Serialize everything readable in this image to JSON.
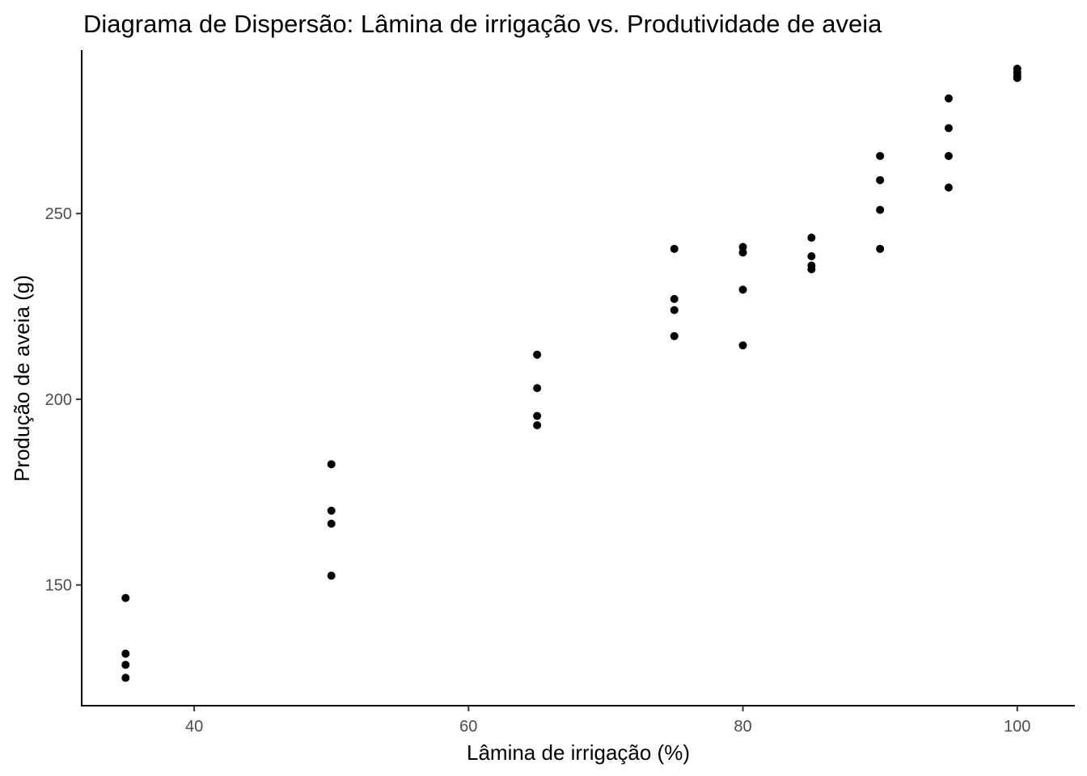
{
  "chart_data": {
    "type": "scatter",
    "title": "Diagrama de Dispersão: Lâmina de irrigação vs. Produtividade de aveia",
    "xlabel": "Lâmina de irrigação (%)",
    "ylabel": "Produção de aveia (g)",
    "xlim": [
      31.8,
      104.2
    ],
    "ylim": [
      117.5,
      294
    ],
    "xticks": [
      40,
      60,
      80,
      100
    ],
    "yticks": [
      150,
      200,
      250
    ],
    "grid": false,
    "legend": "none",
    "point_color": "#000000",
    "points": [
      {
        "x": 35,
        "y": 146.5
      },
      {
        "x": 35,
        "y": 131.5
      },
      {
        "x": 35,
        "y": 128.5
      },
      {
        "x": 35,
        "y": 125
      },
      {
        "x": 50,
        "y": 182.5
      },
      {
        "x": 50,
        "y": 170
      },
      {
        "x": 50,
        "y": 166.5
      },
      {
        "x": 50,
        "y": 152.5
      },
      {
        "x": 65,
        "y": 212
      },
      {
        "x": 65,
        "y": 203
      },
      {
        "x": 65,
        "y": 195.5
      },
      {
        "x": 65,
        "y": 193
      },
      {
        "x": 75,
        "y": 240.5
      },
      {
        "x": 75,
        "y": 227
      },
      {
        "x": 75,
        "y": 224
      },
      {
        "x": 75,
        "y": 217
      },
      {
        "x": 80,
        "y": 241
      },
      {
        "x": 80,
        "y": 239.5
      },
      {
        "x": 80,
        "y": 229.5
      },
      {
        "x": 80,
        "y": 214.5
      },
      {
        "x": 85,
        "y": 243.5
      },
      {
        "x": 85,
        "y": 238.5
      },
      {
        "x": 85,
        "y": 236
      },
      {
        "x": 85,
        "y": 235
      },
      {
        "x": 90,
        "y": 265.5
      },
      {
        "x": 90,
        "y": 259
      },
      {
        "x": 90,
        "y": 251
      },
      {
        "x": 90,
        "y": 240.5
      },
      {
        "x": 95,
        "y": 281
      },
      {
        "x": 95,
        "y": 273
      },
      {
        "x": 95,
        "y": 265.5
      },
      {
        "x": 95,
        "y": 257
      },
      {
        "x": 100,
        "y": 289
      },
      {
        "x": 100,
        "y": 288
      },
      {
        "x": 100,
        "y": 287
      },
      {
        "x": 100,
        "y": 286.5
      }
    ]
  }
}
